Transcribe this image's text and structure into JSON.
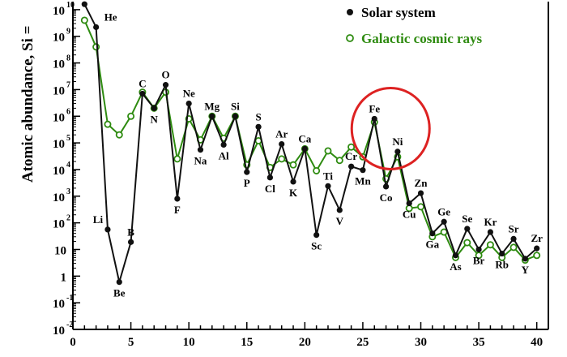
{
  "chart_data": {
    "type": "line",
    "ylabel": "Atomic abundance, Si =",
    "yscale": "log",
    "xlim": [
      0,
      41
    ],
    "ylim": [
      0.01,
      20000000000
    ],
    "x_ticks": [
      {
        "value": 0,
        "label": "0"
      },
      {
        "value": 5,
        "label": "5"
      },
      {
        "value": 10,
        "label": "10"
      },
      {
        "value": 15,
        "label": "15"
      },
      {
        "value": 20,
        "label": "20"
      },
      {
        "value": 25,
        "label": "25"
      },
      {
        "value": 30,
        "label": "30"
      },
      {
        "value": 35,
        "label": "35"
      },
      {
        "value": 40,
        "label": "40"
      }
    ],
    "y_ticks": [
      {
        "value": 10000000000,
        "base": "10",
        "exp": "10"
      },
      {
        "value": 1000000000,
        "base": "10",
        "exp": "9"
      },
      {
        "value": 100000000,
        "base": "10",
        "exp": "8"
      },
      {
        "value": 10000000,
        "base": "10",
        "exp": "7"
      },
      {
        "value": 1000000,
        "base": "10",
        "exp": "6"
      },
      {
        "value": 100000,
        "base": "10",
        "exp": "5"
      },
      {
        "value": 10000,
        "base": "10",
        "exp": "4"
      },
      {
        "value": 1000,
        "base": "10",
        "exp": "3"
      },
      {
        "value": 100,
        "base": "10",
        "exp": "2"
      },
      {
        "value": 10,
        "base": "10",
        "exp": ""
      },
      {
        "value": 1,
        "base": "1",
        "exp": ""
      },
      {
        "value": 0.1,
        "base": "10",
        "exp": "-1"
      },
      {
        "value": 0.01,
        "base": "10",
        "exp": "-2"
      }
    ],
    "series": [
      {
        "name": "Solar system",
        "color": "#111111",
        "marker": "filled-circle",
        "x": [
          1,
          2,
          3,
          4,
          5,
          6,
          7,
          8,
          9,
          10,
          11,
          12,
          13,
          14,
          15,
          16,
          17,
          18,
          19,
          20,
          21,
          22,
          23,
          24,
          25,
          26,
          27,
          28,
          29,
          30,
          31,
          32,
          33,
          34,
          35,
          36,
          37,
          38,
          39,
          40
        ],
        "y": [
          16000000000,
          2200000000,
          56,
          0.6,
          19,
          7000000,
          2000000,
          15000000,
          800,
          3000000,
          55000,
          1000000,
          85000,
          1000000,
          8000,
          400000,
          5000,
          90000,
          3500,
          60000,
          35,
          2400,
          300,
          13000,
          9500,
          800000,
          2300,
          47000,
          540,
          1300,
          40,
          110,
          6,
          60,
          10,
          45,
          7,
          25,
          4.5,
          11
        ]
      },
      {
        "name": "Galactic cosmic rays",
        "color": "#2e8b10",
        "marker": "open-circle",
        "x": [
          1,
          2,
          3,
          4,
          5,
          6,
          7,
          8,
          9,
          10,
          11,
          12,
          13,
          14,
          15,
          16,
          17,
          18,
          19,
          20,
          21,
          22,
          23,
          24,
          25,
          26,
          27,
          28,
          29,
          30,
          31,
          32,
          33,
          34,
          35,
          36,
          37,
          38,
          39,
          40
        ],
        "y": [
          4000000000,
          400000000,
          500000,
          200000,
          1000000,
          8000000,
          2000000,
          8000000,
          25000,
          800000,
          130000,
          1000000,
          150000,
          1000000,
          15000,
          120000,
          12000,
          25000,
          15000,
          60000,
          9000,
          50000,
          22000,
          70000,
          30000,
          600000,
          4500,
          30000,
          350,
          400,
          30,
          45,
          5,
          18,
          6,
          15,
          5,
          12,
          4,
          6
        ]
      }
    ],
    "element_labels": [
      {
        "z": 2,
        "label": "He"
      },
      {
        "z": 3,
        "label": "Li"
      },
      {
        "z": 4,
        "label": "Be"
      },
      {
        "z": 5,
        "label": "B"
      },
      {
        "z": 6,
        "label": "C"
      },
      {
        "z": 7,
        "label": "N"
      },
      {
        "z": 8,
        "label": "O"
      },
      {
        "z": 9,
        "label": "F"
      },
      {
        "z": 10,
        "label": "Ne"
      },
      {
        "z": 11,
        "label": "Na"
      },
      {
        "z": 12,
        "label": "Mg"
      },
      {
        "z": 13,
        "label": "Al"
      },
      {
        "z": 14,
        "label": "Si"
      },
      {
        "z": 15,
        "label": "P"
      },
      {
        "z": 16,
        "label": "S"
      },
      {
        "z": 17,
        "label": "Cl"
      },
      {
        "z": 18,
        "label": "Ar"
      },
      {
        "z": 19,
        "label": "K"
      },
      {
        "z": 20,
        "label": "Ca"
      },
      {
        "z": 21,
        "label": "Sc"
      },
      {
        "z": 22,
        "label": "Ti"
      },
      {
        "z": 23,
        "label": "V"
      },
      {
        "z": 24,
        "label": "Cr"
      },
      {
        "z": 25,
        "label": "Mn"
      },
      {
        "z": 26,
        "label": "Fe"
      },
      {
        "z": 27,
        "label": "Co"
      },
      {
        "z": 28,
        "label": "Ni"
      },
      {
        "z": 29,
        "label": "Cu"
      },
      {
        "z": 30,
        "label": "Zn"
      },
      {
        "z": 31,
        "label": "Ga"
      },
      {
        "z": 32,
        "label": "Ge"
      },
      {
        "z": 33,
        "label": "As"
      },
      {
        "z": 34,
        "label": "Se"
      },
      {
        "z": 35,
        "label": "Br"
      },
      {
        "z": 36,
        "label": "Kr"
      },
      {
        "z": 37,
        "label": "Rb"
      },
      {
        "z": 38,
        "label": "Sr"
      },
      {
        "z": 39,
        "label": "Y"
      },
      {
        "z": 40,
        "label": "Zr"
      }
    ],
    "annotation": {
      "type": "circle",
      "color": "#dd2222",
      "around": "Fe"
    },
    "legend": {
      "placement": "top-right"
    },
    "grid": false
  }
}
